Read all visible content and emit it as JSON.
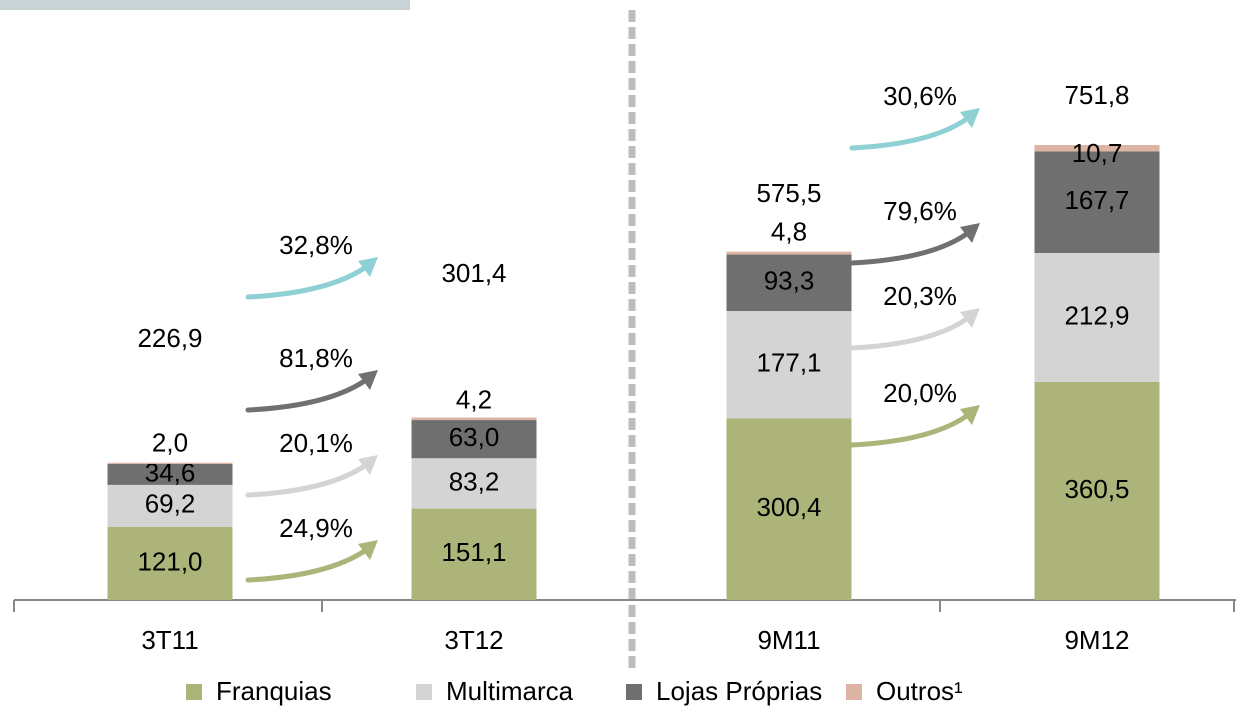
{
  "chart_data": {
    "type": "bar",
    "stacked": true,
    "categories": [
      "3T11",
      "3T12",
      "9M11",
      "9M12"
    ],
    "series": [
      {
        "name": "Franquias",
        "color": "#adb47a",
        "values": [
          121.0,
          151.1,
          300.4,
          360.5
        ],
        "value_labels": [
          "121,0",
          "151,1",
          "300,4",
          "360,5"
        ],
        "growth": [
          24.9,
          20.0
        ],
        "growth_labels": [
          "24,9%",
          "20,0%"
        ]
      },
      {
        "name": "Multimarca",
        "color": "#d4d4d4",
        "values": [
          69.2,
          83.2,
          177.1,
          212.9
        ],
        "value_labels": [
          "69,2",
          "83,2",
          "177,1",
          "212,9"
        ],
        "growth": [
          20.1,
          20.3
        ],
        "growth_labels": [
          "20,1%",
          "20,3%"
        ]
      },
      {
        "name": "Lojas Próprias",
        "color": "#6f6f6f",
        "values": [
          34.6,
          63.0,
          93.3,
          167.7
        ],
        "value_labels": [
          "34,6",
          "63,0",
          "93,3",
          "167,7"
        ],
        "growth": [
          81.8,
          79.6
        ],
        "growth_labels": [
          "81,8%",
          "79,6%"
        ]
      },
      {
        "name": "Outros¹",
        "color": "#dcb4a4",
        "values": [
          2.0,
          4.2,
          4.8,
          10.7
        ],
        "value_labels": [
          "2,0",
          "4,2",
          "4,8",
          "10,7"
        ]
      }
    ],
    "totals": {
      "color": "#8fd0d5",
      "values": [
        226.9,
        301.4,
        575.5,
        751.8
      ],
      "value_labels": [
        "226,9",
        "301,4",
        "575,5",
        "751,8"
      ],
      "growth": [
        32.8,
        30.6
      ],
      "growth_labels": [
        "32,8%",
        "30,6%"
      ]
    }
  }
}
